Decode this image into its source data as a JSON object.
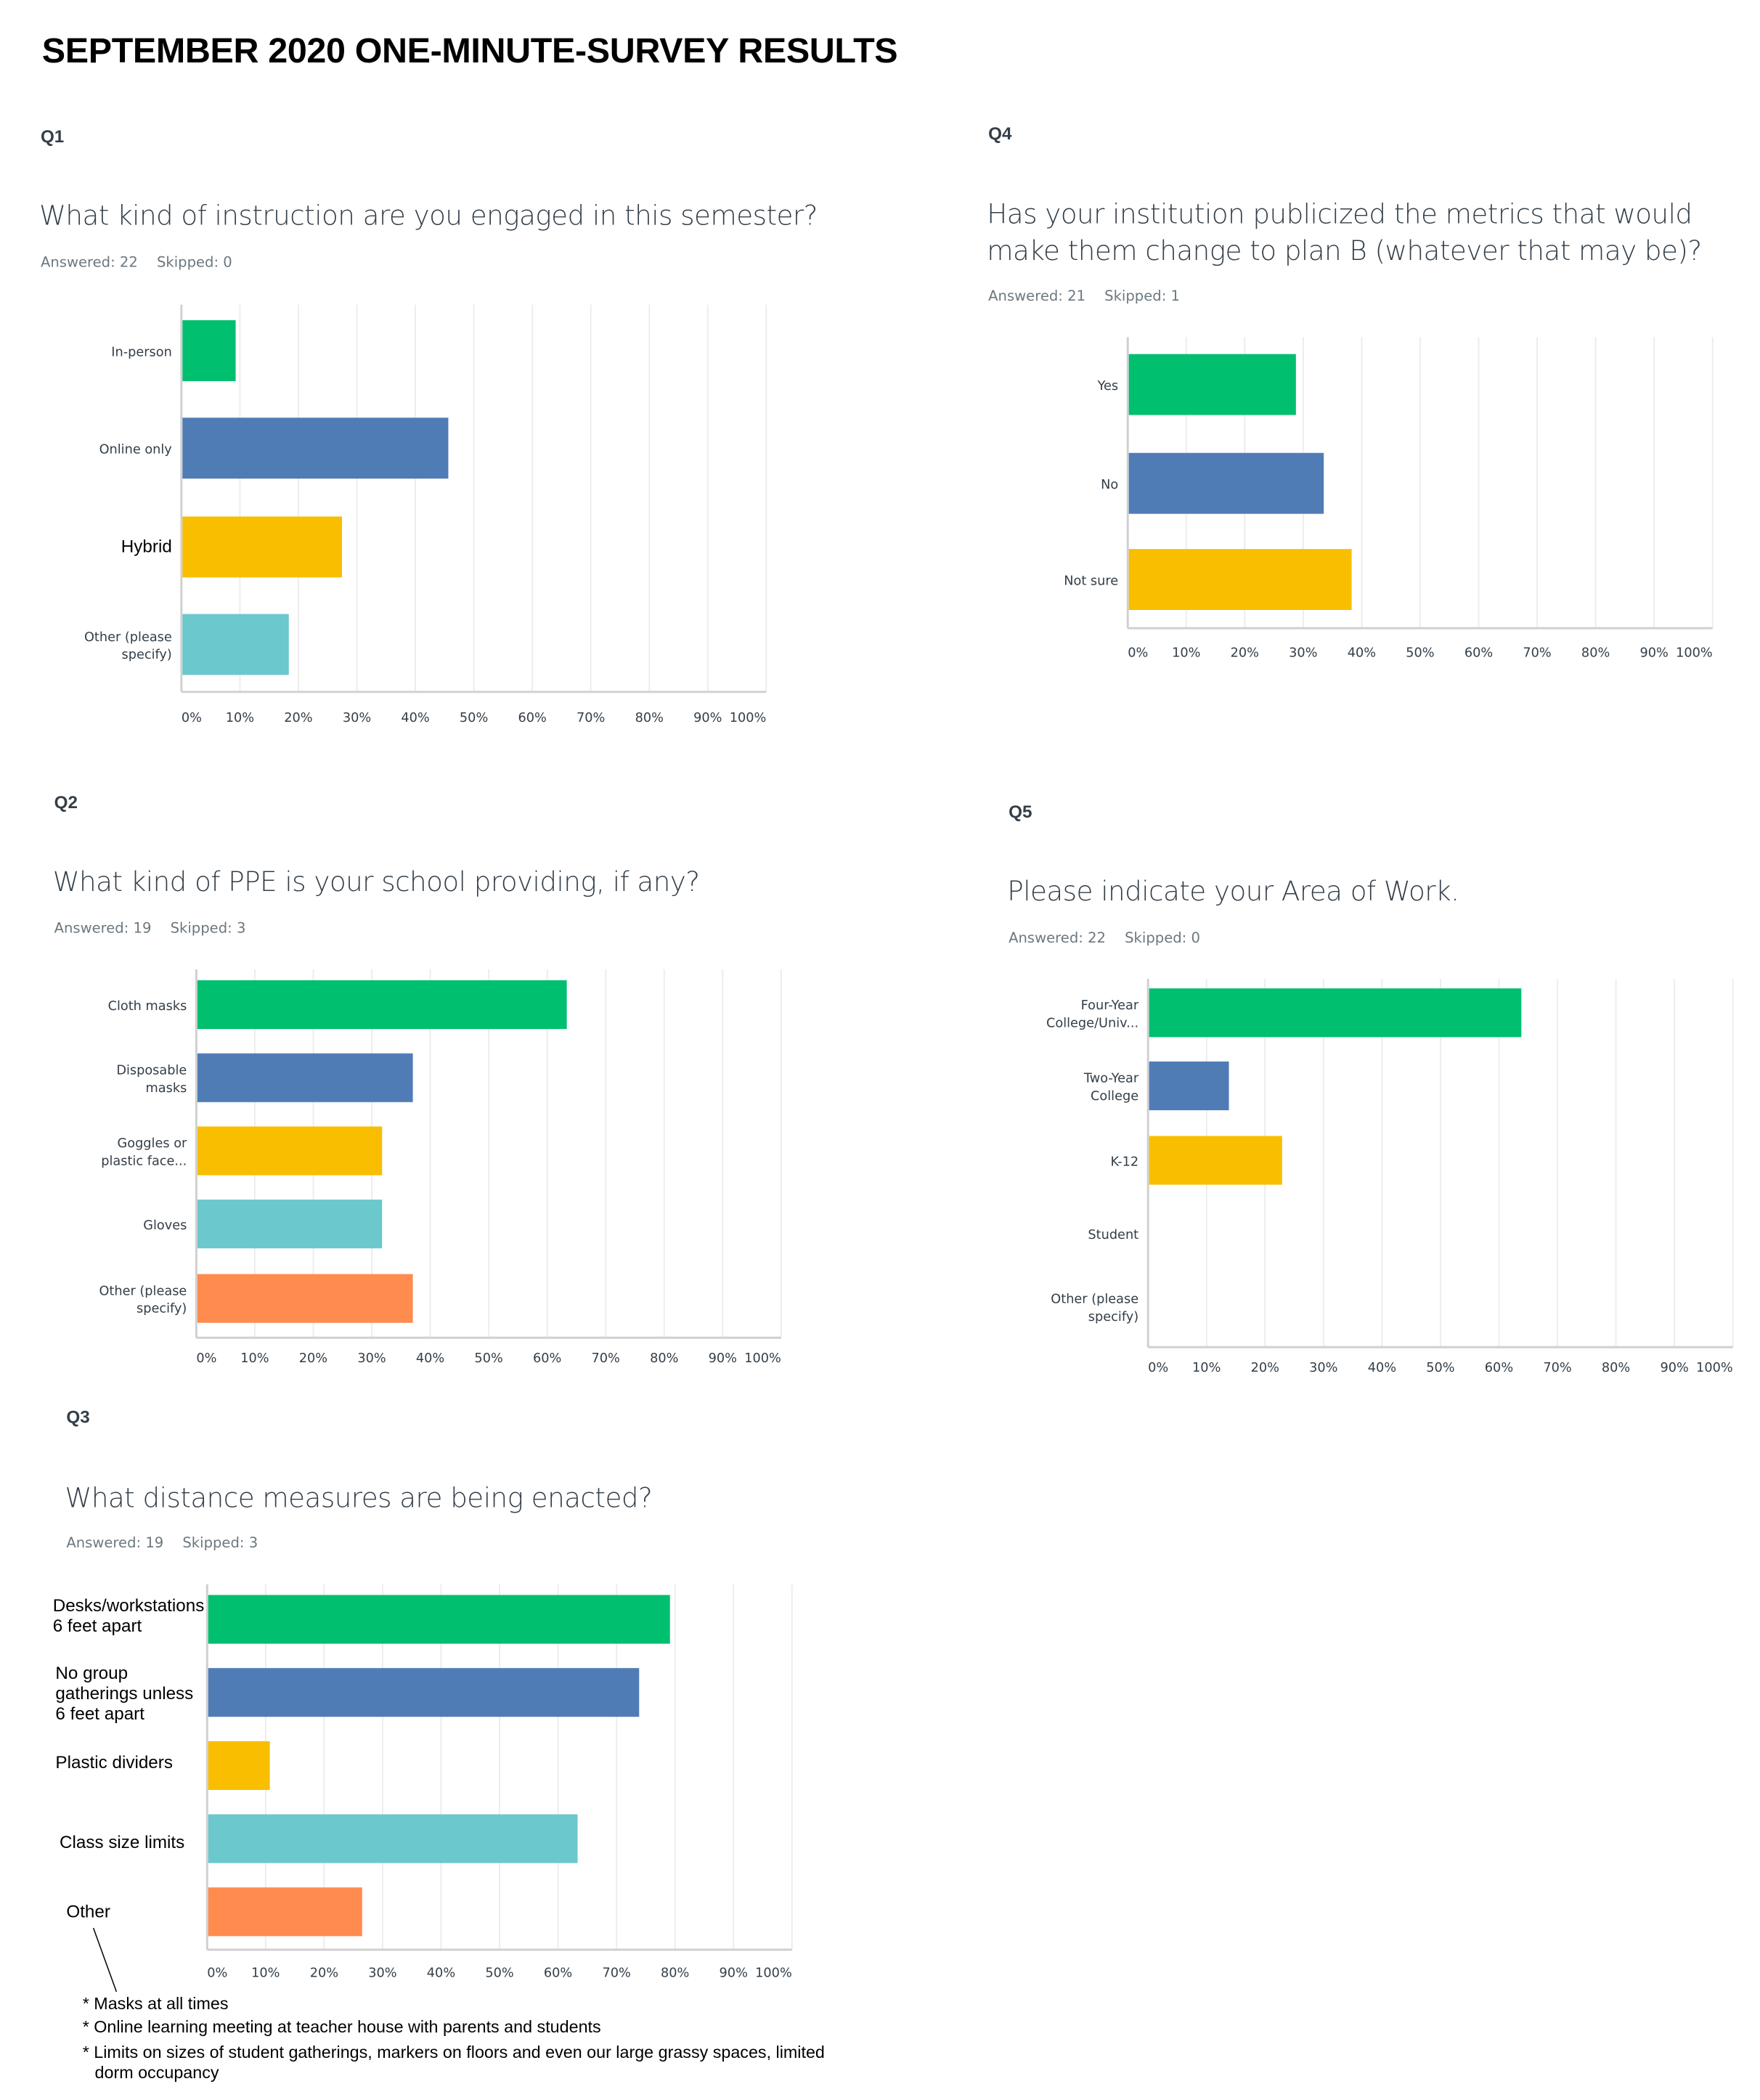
{
  "page_title": "SEPTEMBER 2020 ONE-MINUTE-SURVEY RESULTS",
  "palette": {
    "green": "#00BF6F",
    "blue": "#507CB6",
    "yellow": "#F9BE00",
    "teal": "#6BC8CD",
    "orange": "#FF8B4F"
  },
  "questions": {
    "q1": {
      "number": "Q1",
      "text": "What kind of instruction are you engaged in this semester?",
      "answered": "Answered: 22",
      "skipped": "Skipped: 0"
    },
    "q4": {
      "number": "Q4",
      "text_line1": "Has your institution publicized the metrics that would",
      "text_line2": "make them change to plan B (whatever that may be)?",
      "answered": "Answered: 21",
      "skipped": "Skipped: 1"
    },
    "q2": {
      "number": "Q2",
      "text": "What kind of PPE is your school providing, if any?",
      "answered": "Answered: 19",
      "skipped": "Skipped: 3"
    },
    "q5": {
      "number": "Q5",
      "text": "Please indicate your Area of Work.",
      "answered": "Answered: 22",
      "skipped": "Skipped: 0"
    },
    "q3": {
      "number": "Q3",
      "text": "What distance measures are being enacted?",
      "answered": "Answered: 19",
      "skipped": "Skipped: 3"
    }
  },
  "q3_other_notes": [
    "* Masks at all times",
    "* Online learning meeting at teacher house with parents and students",
    "* Limits on sizes of student gatherings, markers on floors and even our large grassy spaces, limited",
    "dorm occupancy"
  ],
  "chart_data": [
    {
      "id": "q1",
      "type": "bar",
      "orientation": "horizontal",
      "title": "What kind of instruction are you engaged in this semester?",
      "categories": [
        [
          "In-person"
        ],
        [
          "Online only"
        ],
        [
          "Hybrid"
        ],
        [
          "Other (please",
          "specify)"
        ]
      ],
      "values": [
        9.09,
        45.45,
        27.27,
        18.18
      ],
      "colors": [
        "green",
        "blue",
        "yellow",
        "teal"
      ],
      "xlim": [
        0,
        100
      ],
      "xticks": [
        "0%",
        "10%",
        "20%",
        "30%",
        "40%",
        "50%",
        "60%",
        "70%",
        "80%",
        "90%",
        "100%"
      ],
      "grid": true,
      "unit": "%"
    },
    {
      "id": "q4",
      "type": "bar",
      "orientation": "horizontal",
      "title": "Has your institution publicized the metrics that would make them change to plan B (whatever that may be)?",
      "categories": [
        [
          "Yes"
        ],
        [
          "No"
        ],
        [
          "Not sure"
        ]
      ],
      "values": [
        28.57,
        33.33,
        38.1
      ],
      "colors": [
        "green",
        "blue",
        "yellow"
      ],
      "xlim": [
        0,
        100
      ],
      "xticks": [
        "0%",
        "10%",
        "20%",
        "30%",
        "40%",
        "50%",
        "60%",
        "70%",
        "80%",
        "90%",
        "100%"
      ],
      "grid": true,
      "unit": "%"
    },
    {
      "id": "q2",
      "type": "bar",
      "orientation": "horizontal",
      "title": "What kind of PPE is your school providing, if any?",
      "categories": [
        [
          "Cloth masks"
        ],
        [
          "Disposable",
          "masks"
        ],
        [
          "Goggles or",
          "plastic face..."
        ],
        [
          "Gloves"
        ],
        [
          "Other (please",
          "specify)"
        ]
      ],
      "values": [
        63.16,
        36.84,
        31.58,
        31.58,
        36.84
      ],
      "colors": [
        "green",
        "blue",
        "yellow",
        "teal",
        "orange"
      ],
      "xlim": [
        0,
        100
      ],
      "xticks": [
        "0%",
        "10%",
        "20%",
        "30%",
        "40%",
        "50%",
        "60%",
        "70%",
        "80%",
        "90%",
        "100%"
      ],
      "grid": true,
      "unit": "%"
    },
    {
      "id": "q5",
      "type": "bar",
      "orientation": "horizontal",
      "title": "Please indicate your Area of Work.",
      "categories": [
        [
          "Four-Year",
          "College/Univ..."
        ],
        [
          "Two-Year",
          "College"
        ],
        [
          "K-12"
        ],
        [
          "Student"
        ],
        [
          "Other (please",
          "specify)"
        ]
      ],
      "values": [
        63.64,
        13.64,
        22.73,
        0,
        0
      ],
      "colors": [
        "green",
        "blue",
        "yellow",
        "teal",
        "orange"
      ],
      "xlim": [
        0,
        100
      ],
      "xticks": [
        "0%",
        "10%",
        "20%",
        "30%",
        "40%",
        "50%",
        "60%",
        "70%",
        "80%",
        "90%",
        "100%"
      ],
      "grid": true,
      "unit": "%"
    },
    {
      "id": "q3",
      "type": "bar",
      "orientation": "horizontal",
      "title": "What distance measures are being enacted?",
      "categories": [
        [
          "Desks/workstations",
          "6 feet apart"
        ],
        [
          "No group",
          "gatherings unless",
          "6 feet apart"
        ],
        [
          "Plastic dividers"
        ],
        [
          "Class size limits"
        ],
        [
          "Other"
        ]
      ],
      "values": [
        78.95,
        73.68,
        10.53,
        63.16,
        26.32
      ],
      "colors": [
        "green",
        "blue",
        "yellow",
        "teal",
        "orange"
      ],
      "xlim": [
        0,
        100
      ],
      "xticks": [
        "0%",
        "10%",
        "20%",
        "30%",
        "40%",
        "50%",
        "60%",
        "70%",
        "80%",
        "90%",
        "100%"
      ],
      "grid": true,
      "unit": "%"
    }
  ]
}
